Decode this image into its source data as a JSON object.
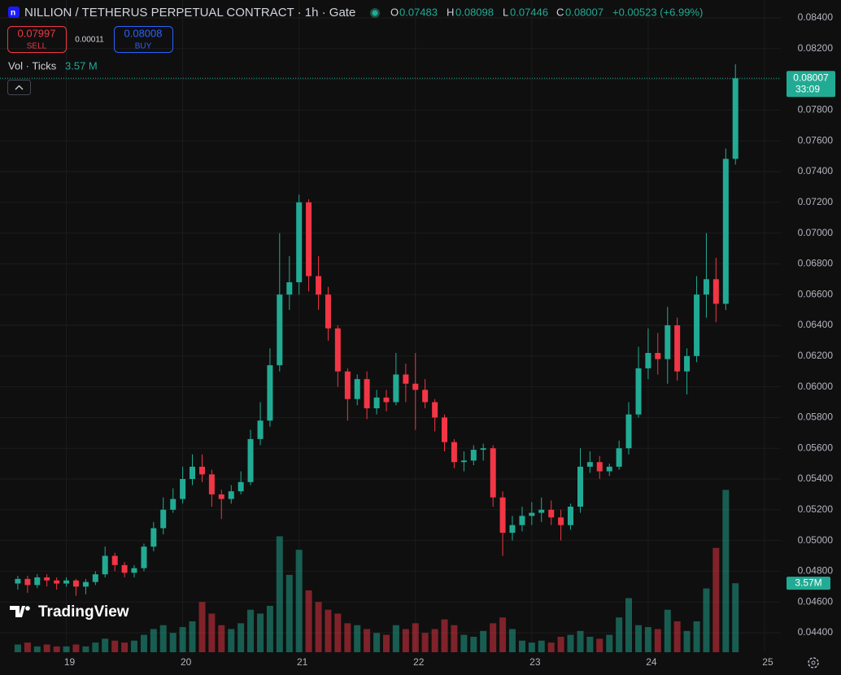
{
  "chart_data": {
    "type": "candlestick",
    "title": "NILLION / TETHERUS PERPETUAL CONTRACT · 1h · Gate",
    "ohlc_letters": [
      "O",
      "H",
      "L",
      "C"
    ],
    "change": "+0.00523 (+6.99%)",
    "sell": {
      "price": 0.07997,
      "label": "SELL"
    },
    "spread": 0.00011,
    "buy": {
      "price": 0.08008,
      "label": "BUY"
    },
    "volume_title": "Vol · Ticks",
    "volume_legend": "3.57 M",
    "volume_tag": "3.57M",
    "countdown": "33:09",
    "logo": "TradingView",
    "up_color": "#22ab94",
    "down_color": "#f23645",
    "x": [
      18.583,
      18.667,
      18.75,
      18.833,
      18.917,
      19,
      19.083,
      19.167,
      19.25,
      19.333,
      19.417,
      19.5,
      19.583,
      19.667,
      19.75,
      19.833,
      19.917,
      20,
      20.083,
      20.167,
      20.25,
      20.333,
      20.417,
      20.5,
      20.583,
      20.667,
      20.75,
      20.833,
      20.917,
      21,
      21.083,
      21.167,
      21.25,
      21.333,
      21.417,
      21.5,
      21.583,
      21.667,
      21.75,
      21.833,
      21.917,
      22,
      22.083,
      22.167,
      22.25,
      22.333,
      22.417,
      22.5,
      22.583,
      22.667,
      22.75,
      22.833,
      22.917,
      23,
      23.083,
      23.167,
      23.25,
      23.333,
      23.417,
      23.5,
      23.583,
      23.667,
      23.75,
      23.833,
      23.917,
      24,
      24.083,
      24.167,
      24.25,
      24.333,
      24.417,
      24.5,
      24.583,
      24.667,
      24.75
    ],
    "open": [
      0.0472,
      0.0475,
      0.0471,
      0.0476,
      0.0474,
      0.0472,
      0.0474,
      0.047,
      0.0473,
      0.0478,
      0.049,
      0.0484,
      0.0479,
      0.0482,
      0.0496,
      0.0508,
      0.052,
      0.0527,
      0.054,
      0.0548,
      0.0543,
      0.053,
      0.0527,
      0.0532,
      0.0538,
      0.0566,
      0.0578,
      0.0614,
      0.066,
      0.0668,
      0.072,
      0.0672,
      0.066,
      0.0638,
      0.061,
      0.0592,
      0.0605,
      0.0586,
      0.0593,
      0.059,
      0.0608,
      0.0602,
      0.0598,
      0.059,
      0.058,
      0.0564,
      0.0551,
      0.0552,
      0.0559,
      0.056,
      0.0528,
      0.0505,
      0.051,
      0.0516,
      0.0518,
      0.052,
      0.0515,
      0.051,
      0.0522,
      0.0548,
      0.0551,
      0.0545,
      0.0548,
      0.056,
      0.0582,
      0.0612,
      0.0622,
      0.0618,
      0.064,
      0.061,
      0.062,
      0.066,
      0.067,
      0.0654,
      0.07483
    ],
    "high": [
      0.0477,
      0.0477,
      0.0478,
      0.0478,
      0.0476,
      0.0476,
      0.0475,
      0.0475,
      0.048,
      0.0496,
      0.0492,
      0.0486,
      0.0484,
      0.0498,
      0.0512,
      0.0528,
      0.0534,
      0.0548,
      0.0556,
      0.0556,
      0.0546,
      0.0533,
      0.0536,
      0.0545,
      0.0572,
      0.059,
      0.0625,
      0.07,
      0.0685,
      0.0725,
      0.0722,
      0.0685,
      0.0665,
      0.064,
      0.0612,
      0.0608,
      0.061,
      0.0598,
      0.0598,
      0.0622,
      0.0615,
      0.0622,
      0.0605,
      0.0592,
      0.0582,
      0.0566,
      0.0558,
      0.0562,
      0.0563,
      0.0562,
      0.0532,
      0.0516,
      0.0522,
      0.0525,
      0.0528,
      0.0526,
      0.052,
      0.0524,
      0.056,
      0.0558,
      0.0555,
      0.055,
      0.0565,
      0.059,
      0.0626,
      0.0638,
      0.0635,
      0.0652,
      0.0645,
      0.0625,
      0.0672,
      0.07,
      0.0684,
      0.0755,
      0.08098
    ],
    "low": [
      0.0468,
      0.0466,
      0.0469,
      0.047,
      0.0468,
      0.047,
      0.0464,
      0.0465,
      0.0471,
      0.0476,
      0.048,
      0.0476,
      0.0476,
      0.048,
      0.0493,
      0.0504,
      0.0518,
      0.0524,
      0.0536,
      0.0538,
      0.0522,
      0.0514,
      0.0524,
      0.053,
      0.0536,
      0.0562,
      0.0574,
      0.061,
      0.065,
      0.066,
      0.0662,
      0.065,
      0.063,
      0.06,
      0.0578,
      0.0588,
      0.0579,
      0.0582,
      0.0584,
      0.0588,
      0.059,
      0.0572,
      0.0586,
      0.0571,
      0.0558,
      0.0547,
      0.0545,
      0.0549,
      0.0552,
      0.0522,
      0.049,
      0.05,
      0.0506,
      0.051,
      0.0512,
      0.051,
      0.05,
      0.0507,
      0.0518,
      0.0544,
      0.054,
      0.0542,
      0.0546,
      0.0556,
      0.058,
      0.0605,
      0.0608,
      0.0602,
      0.0604,
      0.0595,
      0.0616,
      0.0645,
      0.0642,
      0.065,
      0.07446
    ],
    "close": [
      0.0475,
      0.0471,
      0.0476,
      0.0474,
      0.0472,
      0.0474,
      0.047,
      0.0473,
      0.0478,
      0.049,
      0.0484,
      0.0479,
      0.0482,
      0.0496,
      0.0508,
      0.052,
      0.0527,
      0.054,
      0.0548,
      0.0543,
      0.053,
      0.0527,
      0.0532,
      0.0538,
      0.0566,
      0.0578,
      0.0614,
      0.066,
      0.0668,
      0.072,
      0.0672,
      0.066,
      0.0638,
      0.061,
      0.0592,
      0.0605,
      0.0586,
      0.0593,
      0.059,
      0.0608,
      0.0602,
      0.0598,
      0.059,
      0.058,
      0.0564,
      0.0551,
      0.0552,
      0.0559,
      0.056,
      0.0528,
      0.0505,
      0.051,
      0.0516,
      0.0518,
      0.052,
      0.0515,
      0.051,
      0.0522,
      0.0548,
      0.0551,
      0.0545,
      0.0548,
      0.056,
      0.0582,
      0.0612,
      0.0622,
      0.0618,
      0.064,
      0.061,
      0.062,
      0.066,
      0.067,
      0.0654,
      0.07483,
      0.08007
    ],
    "volume": [
      0.4,
      0.5,
      0.3,
      0.4,
      0.3,
      0.3,
      0.4,
      0.3,
      0.5,
      0.7,
      0.6,
      0.5,
      0.6,
      0.9,
      1.2,
      1.4,
      1.0,
      1.3,
      1.6,
      2.6,
      2.0,
      1.4,
      1.2,
      1.5,
      2.2,
      2.0,
      2.4,
      6.0,
      4.0,
      5.3,
      3.2,
      2.6,
      2.2,
      2.0,
      1.5,
      1.4,
      1.2,
      1.0,
      0.9,
      1.4,
      1.2,
      1.5,
      1.0,
      1.2,
      1.7,
      1.4,
      0.9,
      0.8,
      1.1,
      1.5,
      1.8,
      1.2,
      0.6,
      0.5,
      0.6,
      0.5,
      0.8,
      0.9,
      1.1,
      0.8,
      0.7,
      0.9,
      1.8,
      2.8,
      1.4,
      1.3,
      1.2,
      2.2,
      1.6,
      1.1,
      1.6,
      3.3,
      5.4,
      8.4,
      3.57
    ],
    "xlim": [
      18.43,
      25.14
    ],
    "xticks": [
      19,
      20,
      21,
      22,
      23,
      24,
      25
    ],
    "ylim": [
      0.044,
      0.084
    ],
    "yticks": [
      {
        "value": 0.044,
        "label": "0.04400"
      },
      {
        "value": 0.046,
        "label": "0.04600"
      },
      {
        "value": 0.048,
        "label": "0.04800"
      },
      {
        "value": 0.05,
        "label": "0.05000"
      },
      {
        "value": 0.052,
        "label": "0.05200"
      },
      {
        "value": 0.054,
        "label": "0.05400"
      },
      {
        "value": 0.056,
        "label": "0.05600"
      },
      {
        "value": 0.058,
        "label": "0.05800"
      },
      {
        "value": 0.06,
        "label": "0.06000"
      },
      {
        "value": 0.062,
        "label": "0.06200"
      },
      {
        "value": 0.064,
        "label": "0.06400"
      },
      {
        "value": 0.066,
        "label": "0.06600"
      },
      {
        "value": 0.068,
        "label": "0.06800"
      },
      {
        "value": 0.07,
        "label": "0.07000"
      },
      {
        "value": 0.072,
        "label": "0.07200"
      },
      {
        "value": 0.074,
        "label": "0.07400"
      },
      {
        "value": 0.076,
        "label": "0.07600"
      },
      {
        "value": 0.078,
        "label": "0.07800"
      },
      {
        "value": 0.08,
        "label": "0.08000"
      },
      {
        "value": 0.082,
        "label": "0.08200"
      },
      {
        "value": 0.084,
        "label": "0.08400"
      }
    ],
    "volume_lim": [
      0,
      8.5
    ],
    "grid": true
  }
}
